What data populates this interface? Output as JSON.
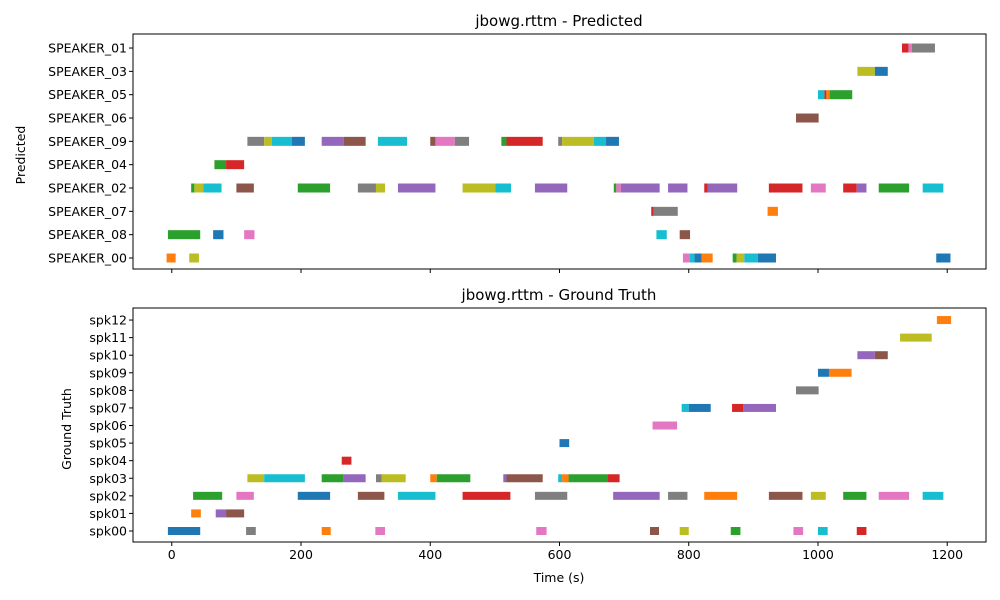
{
  "palette": [
    "#1f77b4",
    "#ff7f0e",
    "#2ca02c",
    "#d62728",
    "#9467bd",
    "#8c564b",
    "#e377c2",
    "#7f7f7f",
    "#bcbd22",
    "#17becf"
  ],
  "chart_data": [
    {
      "type": "timeline",
      "title": "jbowg.rttm - Predicted",
      "xlabel": "",
      "ylabel": "Predicted",
      "xlim": [
        -60,
        1260
      ],
      "xticks": [
        0,
        200,
        400,
        600,
        800,
        1000,
        1200
      ],
      "show_x_tick_labels": false,
      "categories": [
        "SPEAKER_00",
        "SPEAKER_08",
        "SPEAKER_07",
        "SPEAKER_02",
        "SPEAKER_04",
        "SPEAKER_09",
        "SPEAKER_06",
        "SPEAKER_05",
        "SPEAKER_03",
        "SPEAKER_01"
      ],
      "segments": [
        {
          "row": 0,
          "start": -8,
          "end": 6,
          "color": 1
        },
        {
          "row": 0,
          "start": 27,
          "end": 42,
          "color": 8
        },
        {
          "row": 0,
          "start": 791,
          "end": 802,
          "color": 6
        },
        {
          "row": 0,
          "start": 802,
          "end": 809,
          "color": 9
        },
        {
          "row": 0,
          "start": 809,
          "end": 820,
          "color": 0
        },
        {
          "row": 0,
          "start": 820,
          "end": 837,
          "color": 1
        },
        {
          "row": 0,
          "start": 868,
          "end": 874,
          "color": 2
        },
        {
          "row": 0,
          "start": 874,
          "end": 886,
          "color": 8
        },
        {
          "row": 0,
          "start": 886,
          "end": 907,
          "color": 9
        },
        {
          "row": 0,
          "start": 907,
          "end": 935,
          "color": 0
        },
        {
          "row": 0,
          "start": 1183,
          "end": 1205,
          "color": 0
        },
        {
          "row": 1,
          "start": -6,
          "end": 44,
          "color": 2
        },
        {
          "row": 1,
          "start": 64,
          "end": 80,
          "color": 0
        },
        {
          "row": 1,
          "start": 112,
          "end": 128,
          "color": 6
        },
        {
          "row": 1,
          "start": 750,
          "end": 766,
          "color": 9
        },
        {
          "row": 1,
          "start": 786,
          "end": 802,
          "color": 5
        },
        {
          "row": 2,
          "start": 742,
          "end": 746,
          "color": 3
        },
        {
          "row": 2,
          "start": 746,
          "end": 783,
          "color": 7
        },
        {
          "row": 2,
          "start": 922,
          "end": 938,
          "color": 1
        },
        {
          "row": 3,
          "start": 30,
          "end": 35,
          "color": 2
        },
        {
          "row": 3,
          "start": 35,
          "end": 49,
          "color": 8
        },
        {
          "row": 3,
          "start": 49,
          "end": 77,
          "color": 9
        },
        {
          "row": 3,
          "start": 100,
          "end": 127,
          "color": 5
        },
        {
          "row": 3,
          "start": 195,
          "end": 245,
          "color": 2
        },
        {
          "row": 3,
          "start": 288,
          "end": 316,
          "color": 7
        },
        {
          "row": 3,
          "start": 316,
          "end": 330,
          "color": 8
        },
        {
          "row": 3,
          "start": 350,
          "end": 408,
          "color": 4
        },
        {
          "row": 3,
          "start": 450,
          "end": 501,
          "color": 8
        },
        {
          "row": 3,
          "start": 501,
          "end": 525,
          "color": 9
        },
        {
          "row": 3,
          "start": 562,
          "end": 612,
          "color": 4
        },
        {
          "row": 3,
          "start": 684,
          "end": 688,
          "color": 2
        },
        {
          "row": 3,
          "start": 688,
          "end": 695,
          "color": 6
        },
        {
          "row": 3,
          "start": 695,
          "end": 755,
          "color": 4
        },
        {
          "row": 3,
          "start": 768,
          "end": 798,
          "color": 4
        },
        {
          "row": 3,
          "start": 824,
          "end": 829,
          "color": 3
        },
        {
          "row": 3,
          "start": 829,
          "end": 875,
          "color": 4
        },
        {
          "row": 3,
          "start": 924,
          "end": 976,
          "color": 3
        },
        {
          "row": 3,
          "start": 989,
          "end": 1012,
          "color": 6
        },
        {
          "row": 3,
          "start": 1039,
          "end": 1060,
          "color": 3
        },
        {
          "row": 3,
          "start": 1060,
          "end": 1075,
          "color": 4
        },
        {
          "row": 3,
          "start": 1094,
          "end": 1141,
          "color": 2
        },
        {
          "row": 3,
          "start": 1162,
          "end": 1194,
          "color": 9
        },
        {
          "row": 4,
          "start": 66,
          "end": 84,
          "color": 2
        },
        {
          "row": 4,
          "start": 84,
          "end": 112,
          "color": 3
        },
        {
          "row": 5,
          "start": 117,
          "end": 143,
          "color": 7
        },
        {
          "row": 5,
          "start": 143,
          "end": 155,
          "color": 8
        },
        {
          "row": 5,
          "start": 155,
          "end": 186,
          "color": 9
        },
        {
          "row": 5,
          "start": 186,
          "end": 206,
          "color": 0
        },
        {
          "row": 5,
          "start": 232,
          "end": 266,
          "color": 4
        },
        {
          "row": 5,
          "start": 266,
          "end": 300,
          "color": 5
        },
        {
          "row": 5,
          "start": 319,
          "end": 364,
          "color": 9
        },
        {
          "row": 5,
          "start": 400,
          "end": 408,
          "color": 5
        },
        {
          "row": 5,
          "start": 408,
          "end": 438,
          "color": 6
        },
        {
          "row": 5,
          "start": 438,
          "end": 460,
          "color": 7
        },
        {
          "row": 5,
          "start": 510,
          "end": 518,
          "color": 2
        },
        {
          "row": 5,
          "start": 518,
          "end": 574,
          "color": 3
        },
        {
          "row": 5,
          "start": 598,
          "end": 604,
          "color": 7
        },
        {
          "row": 5,
          "start": 604,
          "end": 653,
          "color": 8
        },
        {
          "row": 5,
          "start": 653,
          "end": 672,
          "color": 9
        },
        {
          "row": 5,
          "start": 672,
          "end": 692,
          "color": 0
        },
        {
          "row": 6,
          "start": 966,
          "end": 1001,
          "color": 5
        },
        {
          "row": 7,
          "start": 1000,
          "end": 1010,
          "color": 9
        },
        {
          "row": 7,
          "start": 1010,
          "end": 1013,
          "color": 3
        },
        {
          "row": 7,
          "start": 1013,
          "end": 1018,
          "color": 1
        },
        {
          "row": 7,
          "start": 1018,
          "end": 1053,
          "color": 2
        },
        {
          "row": 8,
          "start": 1061,
          "end": 1088,
          "color": 8
        },
        {
          "row": 8,
          "start": 1088,
          "end": 1108,
          "color": 0
        },
        {
          "row": 9,
          "start": 1130,
          "end": 1140,
          "color": 3
        },
        {
          "row": 9,
          "start": 1140,
          "end": 1145,
          "color": 6
        },
        {
          "row": 9,
          "start": 1145,
          "end": 1181,
          "color": 7
        }
      ]
    },
    {
      "type": "timeline",
      "title": "jbowg.rttm - Ground Truth",
      "xlabel": "Time (s)",
      "ylabel": "Ground Truth",
      "xlim": [
        -60,
        1260
      ],
      "xticks": [
        0,
        200,
        400,
        600,
        800,
        1000,
        1200
      ],
      "show_x_tick_labels": true,
      "categories": [
        "spk00",
        "spk01",
        "spk02",
        "spk03",
        "spk04",
        "spk05",
        "spk06",
        "spk07",
        "spk08",
        "spk09",
        "spk10",
        "spk11",
        "spk12"
      ],
      "segments": [
        {
          "row": 0,
          "start": -6,
          "end": 44,
          "color": 0
        },
        {
          "row": 0,
          "start": 115,
          "end": 130,
          "color": 7
        },
        {
          "row": 0,
          "start": 232,
          "end": 246,
          "color": 1
        },
        {
          "row": 0,
          "start": 315,
          "end": 330,
          "color": 6
        },
        {
          "row": 0,
          "start": 564,
          "end": 580,
          "color": 6
        },
        {
          "row": 0,
          "start": 740,
          "end": 754,
          "color": 5
        },
        {
          "row": 0,
          "start": 786,
          "end": 800,
          "color": 8
        },
        {
          "row": 0,
          "start": 865,
          "end": 880,
          "color": 2
        },
        {
          "row": 0,
          "start": 962,
          "end": 977,
          "color": 6
        },
        {
          "row": 0,
          "start": 1000,
          "end": 1015,
          "color": 9
        },
        {
          "row": 0,
          "start": 1060,
          "end": 1075,
          "color": 3
        },
        {
          "row": 1,
          "start": 30,
          "end": 45,
          "color": 1
        },
        {
          "row": 1,
          "start": 68,
          "end": 84,
          "color": 4
        },
        {
          "row": 1,
          "start": 84,
          "end": 112,
          "color": 5
        },
        {
          "row": 2,
          "start": 33,
          "end": 78,
          "color": 2
        },
        {
          "row": 2,
          "start": 100,
          "end": 127,
          "color": 6
        },
        {
          "row": 2,
          "start": 195,
          "end": 245,
          "color": 0
        },
        {
          "row": 2,
          "start": 288,
          "end": 329,
          "color": 5
        },
        {
          "row": 2,
          "start": 350,
          "end": 408,
          "color": 9
        },
        {
          "row": 2,
          "start": 450,
          "end": 524,
          "color": 3
        },
        {
          "row": 2,
          "start": 562,
          "end": 612,
          "color": 7
        },
        {
          "row": 2,
          "start": 683,
          "end": 755,
          "color": 4
        },
        {
          "row": 2,
          "start": 768,
          "end": 798,
          "color": 7
        },
        {
          "row": 2,
          "start": 824,
          "end": 875,
          "color": 1
        },
        {
          "row": 2,
          "start": 924,
          "end": 976,
          "color": 5
        },
        {
          "row": 2,
          "start": 989,
          "end": 1012,
          "color": 8
        },
        {
          "row": 2,
          "start": 1039,
          "end": 1075,
          "color": 2
        },
        {
          "row": 2,
          "start": 1094,
          "end": 1141,
          "color": 6
        },
        {
          "row": 2,
          "start": 1162,
          "end": 1194,
          "color": 9
        },
        {
          "row": 3,
          "start": 117,
          "end": 143,
          "color": 8
        },
        {
          "row": 3,
          "start": 143,
          "end": 206,
          "color": 9
        },
        {
          "row": 3,
          "start": 232,
          "end": 266,
          "color": 2
        },
        {
          "row": 3,
          "start": 266,
          "end": 300,
          "color": 4
        },
        {
          "row": 3,
          "start": 316,
          "end": 325,
          "color": 7
        },
        {
          "row": 3,
          "start": 325,
          "end": 362,
          "color": 8
        },
        {
          "row": 3,
          "start": 400,
          "end": 410,
          "color": 1
        },
        {
          "row": 3,
          "start": 410,
          "end": 462,
          "color": 2
        },
        {
          "row": 3,
          "start": 513,
          "end": 518,
          "color": 4
        },
        {
          "row": 3,
          "start": 518,
          "end": 574,
          "color": 5
        },
        {
          "row": 3,
          "start": 598,
          "end": 604,
          "color": 9
        },
        {
          "row": 3,
          "start": 604,
          "end": 614,
          "color": 1
        },
        {
          "row": 3,
          "start": 614,
          "end": 675,
          "color": 2
        },
        {
          "row": 3,
          "start": 675,
          "end": 693,
          "color": 3
        },
        {
          "row": 4,
          "start": 263,
          "end": 278,
          "color": 3
        },
        {
          "row": 5,
          "start": 600,
          "end": 615,
          "color": 0
        },
        {
          "row": 6,
          "start": 744,
          "end": 782,
          "color": 6
        },
        {
          "row": 7,
          "start": 789,
          "end": 800,
          "color": 9
        },
        {
          "row": 7,
          "start": 800,
          "end": 834,
          "color": 0
        },
        {
          "row": 7,
          "start": 867,
          "end": 884,
          "color": 3
        },
        {
          "row": 7,
          "start": 884,
          "end": 935,
          "color": 4
        },
        {
          "row": 8,
          "start": 966,
          "end": 1001,
          "color": 7
        },
        {
          "row": 9,
          "start": 1000,
          "end": 1017,
          "color": 0
        },
        {
          "row": 9,
          "start": 1017,
          "end": 1052,
          "color": 1
        },
        {
          "row": 10,
          "start": 1061,
          "end": 1088,
          "color": 4
        },
        {
          "row": 10,
          "start": 1088,
          "end": 1108,
          "color": 5
        },
        {
          "row": 11,
          "start": 1127,
          "end": 1176,
          "color": 8
        },
        {
          "row": 12,
          "start": 1184,
          "end": 1206,
          "color": 1
        }
      ]
    }
  ]
}
